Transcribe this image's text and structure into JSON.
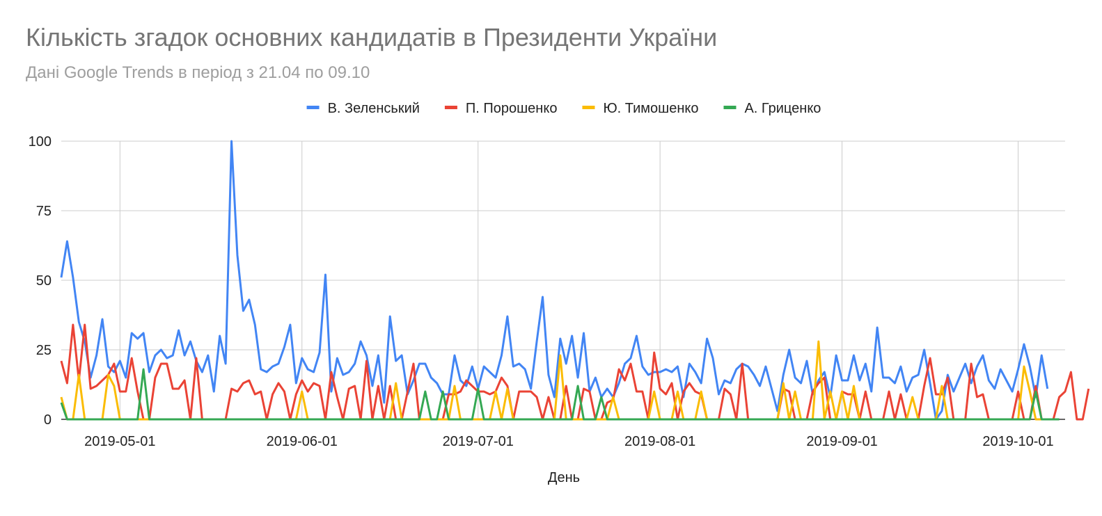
{
  "title": "Кількість згадок основних кандидатів в Президенти України",
  "subtitle": "Дані Google Trends в період з 21.04 по 09.10",
  "chart_data": {
    "type": "line",
    "xlabel": "День",
    "ylabel": "",
    "ylim": [
      0,
      100
    ],
    "yticks": [
      0,
      25,
      50,
      75,
      100
    ],
    "x_start": "2019-04-21",
    "x_end": "2019-10-09",
    "xticks": [
      "2019-05-01",
      "2019-06-01",
      "2019-07-01",
      "2019-08-01",
      "2019-09-01",
      "2019-10-01"
    ],
    "grid": true,
    "legend_position": "top",
    "series": [
      {
        "name": "В. Зеленський",
        "color": "#4285f4",
        "values": [
          51,
          64,
          51,
          35,
          28,
          15,
          23,
          36,
          19,
          17,
          21,
          15,
          31,
          29,
          31,
          17,
          23,
          25,
          22,
          23,
          32,
          23,
          28,
          21,
          17,
          23,
          10,
          30,
          20,
          100,
          59,
          39,
          43,
          34,
          18,
          17,
          19,
          20,
          26,
          34,
          13,
          22,
          18,
          17,
          24,
          52,
          10,
          22,
          16,
          17,
          20,
          28,
          23,
          12,
          23,
          6,
          37,
          21,
          23,
          9,
          14,
          20,
          20,
          15,
          13,
          9,
          9,
          23,
          14,
          12,
          19,
          11,
          19,
          17,
          15,
          23,
          37,
          19,
          20,
          18,
          11,
          28,
          44,
          16,
          8,
          29,
          20,
          30,
          15,
          31,
          10,
          15,
          8,
          11,
          8,
          13,
          20,
          22,
          30,
          19,
          16,
          17,
          17,
          18,
          17,
          19,
          8,
          20,
          17,
          13,
          29,
          22,
          9,
          14,
          13,
          18,
          20,
          19,
          16,
          12,
          19,
          11,
          3,
          16,
          25,
          15,
          13,
          21,
          9,
          14,
          17,
          8,
          23,
          14,
          14,
          23,
          14,
          20,
          10,
          33,
          15,
          15,
          13,
          19,
          10,
          15,
          16,
          25,
          13,
          0,
          3,
          16,
          10,
          15,
          20,
          13,
          19,
          23,
          14,
          11,
          18,
          14,
          10,
          18,
          27,
          19,
          8,
          23,
          11
        ]
      },
      {
        "name": "П. Порошенко",
        "color": "#ea4335",
        "values": [
          21,
          13,
          34,
          14,
          34,
          11,
          12,
          14,
          16,
          20,
          10,
          10,
          22,
          10,
          0,
          0,
          15,
          20,
          20,
          11,
          11,
          14,
          0,
          22,
          0,
          0,
          0,
          0,
          0,
          11,
          10,
          13,
          14,
          9,
          10,
          0,
          9,
          13,
          10,
          0,
          9,
          14,
          10,
          13,
          12,
          0,
          17,
          8,
          0,
          11,
          12,
          0,
          21,
          0,
          12,
          0,
          12,
          0,
          0,
          10,
          20,
          0,
          0,
          0,
          0,
          0,
          9,
          9,
          10,
          14,
          12,
          10,
          10,
          9,
          10,
          15,
          12,
          0,
          10,
          10,
          10,
          8,
          0,
          8,
          0,
          0,
          12,
          0,
          0,
          11,
          10,
          0,
          0,
          6,
          7,
          18,
          14,
          20,
          10,
          10,
          0,
          24,
          11,
          9,
          13,
          0,
          10,
          13,
          10,
          9,
          0,
          0,
          0,
          11,
          9,
          0,
          20,
          0,
          0,
          0,
          0,
          0,
          0,
          11,
          10,
          0,
          0,
          0,
          10,
          13,
          15,
          0,
          0,
          10,
          9,
          9,
          0,
          10,
          0,
          0,
          0,
          10,
          0,
          9,
          0,
          0,
          0,
          12,
          22,
          9,
          9,
          15,
          0,
          0,
          0,
          20,
          8,
          9,
          0,
          0,
          0,
          0,
          0,
          10,
          0,
          0,
          12,
          0,
          0,
          0,
          8,
          10,
          17,
          0,
          0,
          11
        ]
      },
      {
        "name": "Ю. Тимошенко",
        "color": "#fbbc04",
        "values": [
          8,
          0,
          0,
          16,
          0,
          0,
          0,
          0,
          16,
          12,
          0,
          0,
          0,
          0,
          0,
          0,
          0,
          0,
          0,
          0,
          0,
          0,
          0,
          0,
          0,
          0,
          0,
          0,
          0,
          0,
          0,
          0,
          0,
          0,
          0,
          0,
          0,
          0,
          0,
          0,
          0,
          10,
          0,
          0,
          0,
          0,
          0,
          0,
          0,
          0,
          0,
          0,
          0,
          0,
          0,
          0,
          0,
          13,
          0,
          0,
          0,
          0,
          0,
          0,
          0,
          0,
          0,
          12,
          0,
          0,
          0,
          0,
          0,
          0,
          10,
          0,
          11,
          0,
          0,
          0,
          0,
          0,
          0,
          0,
          0,
          23,
          0,
          0,
          0,
          0,
          0,
          0,
          0,
          0,
          8,
          0,
          0,
          0,
          0,
          0,
          0,
          10,
          0,
          0,
          0,
          10,
          0,
          0,
          0,
          10,
          0,
          0,
          0,
          0,
          0,
          0,
          0,
          0,
          0,
          0,
          0,
          0,
          0,
          13,
          0,
          10,
          0,
          0,
          0,
          28,
          0,
          10,
          0,
          10,
          0,
          12,
          0,
          0,
          0,
          0,
          0,
          0,
          0,
          0,
          0,
          8,
          0,
          0,
          0,
          0,
          12,
          0,
          0,
          0,
          0,
          0,
          0,
          0,
          0,
          0,
          0,
          0,
          0,
          0,
          19,
          10,
          0,
          0,
          0,
          0
        ]
      },
      {
        "name": "А. Гриценко",
        "color": "#34a853",
        "values": [
          6,
          0,
          0,
          0,
          0,
          0,
          0,
          0,
          0,
          0,
          0,
          0,
          0,
          0,
          18,
          0,
          0,
          0,
          0,
          0,
          0,
          0,
          0,
          0,
          0,
          0,
          0,
          0,
          0,
          0,
          0,
          0,
          0,
          0,
          0,
          0,
          0,
          0,
          0,
          0,
          0,
          0,
          0,
          0,
          0,
          0,
          0,
          0,
          0,
          0,
          0,
          0,
          0,
          0,
          0,
          0,
          0,
          0,
          0,
          0,
          0,
          0,
          10,
          0,
          0,
          10,
          0,
          0,
          0,
          0,
          0,
          11,
          0,
          0,
          0,
          0,
          0,
          0,
          0,
          0,
          0,
          0,
          0,
          0,
          0,
          0,
          0,
          0,
          12,
          0,
          0,
          0,
          8,
          0,
          0,
          0,
          0,
          0,
          0,
          0,
          0,
          0,
          0,
          0,
          0,
          0,
          0,
          0,
          0,
          0,
          0,
          0,
          0,
          0,
          0,
          0,
          0,
          0,
          0,
          0,
          0,
          0,
          0,
          0,
          0,
          0,
          0,
          0,
          0,
          0,
          0,
          0,
          0,
          0,
          0,
          0,
          0,
          0,
          0,
          0,
          0,
          0,
          0,
          0,
          0,
          0,
          0,
          0,
          0,
          0,
          0,
          0,
          0,
          0,
          0,
          0,
          0,
          0,
          0,
          0,
          0,
          0,
          0,
          0,
          0,
          0,
          10,
          0,
          0,
          0,
          0
        ]
      }
    ]
  }
}
